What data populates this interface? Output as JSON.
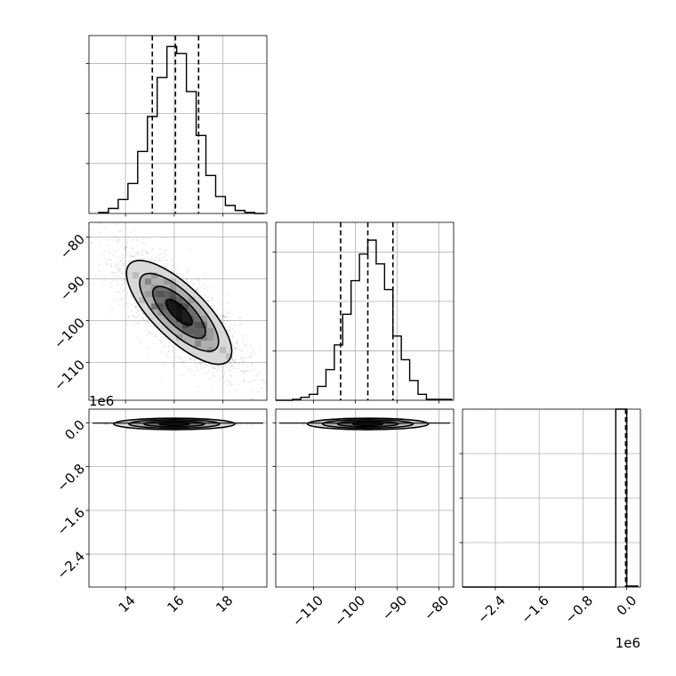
{
  "chart_data": {
    "type": "corner",
    "parameters": [
      {
        "range": [
          12.5,
          19.8
        ],
        "ticks": [
          14,
          16,
          18
        ],
        "tick_labels": [
          "14",
          "16",
          "18"
        ],
        "offset_label": ""
      },
      {
        "range": [
          -119,
          -76.5
        ],
        "ticks": [
          -110,
          -100,
          -90,
          -80
        ],
        "tick_labels": [
          "−110",
          "−100",
          "−90",
          "−80"
        ],
        "offset_label": ""
      },
      {
        "range": [
          -3000000,
          250000
        ],
        "ticks": [
          -2400000,
          -1600000,
          -800000,
          0
        ],
        "tick_labels": [
          "−2.4",
          "−1.6",
          "−0.8",
          "0.0"
        ],
        "offset_label": "1e6"
      }
    ],
    "histograms": [
      {
        "param": 0,
        "bin_edges": [
          12.9,
          13.3,
          13.7,
          14.1,
          14.5,
          14.9,
          15.3,
          15.7,
          16.1,
          16.5,
          16.9,
          17.3,
          17.7,
          18.1,
          18.5,
          18.9,
          19.3,
          19.7
        ],
        "counts": [
          1,
          5,
          14,
          30,
          62,
          97,
          136,
          167,
          160,
          122,
          78,
          38,
          17,
          8,
          3,
          1,
          0
        ],
        "ymax": 178,
        "quantiles": [
          15.1,
          16.05,
          17.0
        ]
      },
      {
        "param": 1,
        "bin_edges": [
          -119,
          -117,
          -115,
          -113,
          -111,
          -109,
          -107,
          -105,
          -103,
          -101,
          -99,
          -97,
          -95,
          -93,
          -91,
          -89,
          -87,
          -85,
          -83,
          -81,
          -79,
          -77
        ],
        "counts": [
          0,
          0,
          1,
          3,
          6,
          14,
          31,
          56,
          87,
          121,
          148,
          162,
          138,
          112,
          65,
          41,
          20,
          6,
          1,
          1,
          1
        ],
        "ymax": 180,
        "quantiles": [
          -103.5,
          -97.0,
          -91.0
        ]
      },
      {
        "param": 2,
        "bin_edges": [
          -3000000,
          -2800000,
          -2600000,
          -2400000,
          -2200000,
          -2000000,
          -1800000,
          -1600000,
          -1400000,
          -1200000,
          -1000000,
          -800000,
          -600000,
          -400000,
          -200000,
          0,
          200000
        ],
        "counts": [
          0,
          0,
          0,
          0,
          0,
          0,
          0,
          0,
          0,
          0,
          0,
          0,
          0,
          0,
          1000,
          6
        ],
        "ymax": 1000,
        "quantiles": [
          -20000,
          -2000,
          1000
        ]
      }
    ],
    "density_panels": [
      {
        "x_param": 0,
        "y_param": 1,
        "mean": [
          16.2,
          -98.0
        ],
        "std": [
          1.08,
          6.2
        ],
        "correlation": -0.75,
        "contour_levels_sigma": [
          0.5,
          1.0,
          1.5,
          2.0
        ]
      },
      {
        "x_param": 0,
        "y_param": 2,
        "mean": [
          16.0,
          -20000
        ],
        "std": [
          1.0,
          20000
        ],
        "correlation": 0.0,
        "contour_levels_sigma": [
          0.5,
          1.0,
          1.5,
          2.0
        ]
      },
      {
        "x_param": 1,
        "y_param": 2,
        "mean": [
          -97.0,
          -20000
        ],
        "std": [
          6.0,
          20000
        ],
        "correlation": 0.0,
        "contour_levels_sigma": [
          0.5,
          1.0,
          1.5,
          2.0
        ]
      }
    ],
    "grid": true,
    "title": "",
    "xlabel": "",
    "ylabel": ""
  }
}
